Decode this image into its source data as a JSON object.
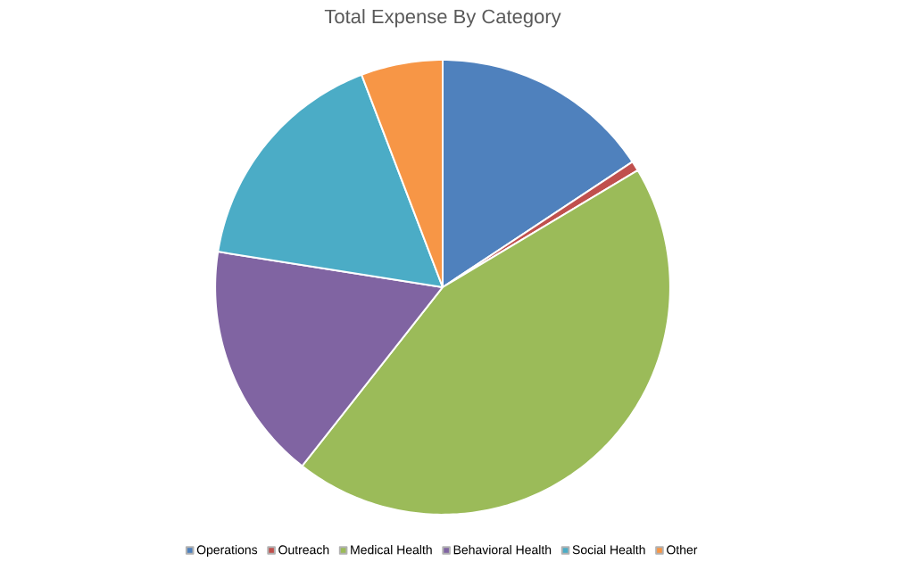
{
  "chart_data": {
    "type": "pie",
    "title": "Total Expense By Category",
    "categories": [
      "Operations",
      "Outreach",
      "Medical Health",
      "Behavioral Health",
      "Social Health",
      "Other"
    ],
    "values": [
      15.7,
      0.7,
      44.2,
      16.9,
      16.7,
      5.8
    ],
    "colors": [
      "#4f81bd",
      "#c0504d",
      "#9bbb59",
      "#8064a2",
      "#4bacc6",
      "#f79646"
    ],
    "legend": "bottom"
  }
}
